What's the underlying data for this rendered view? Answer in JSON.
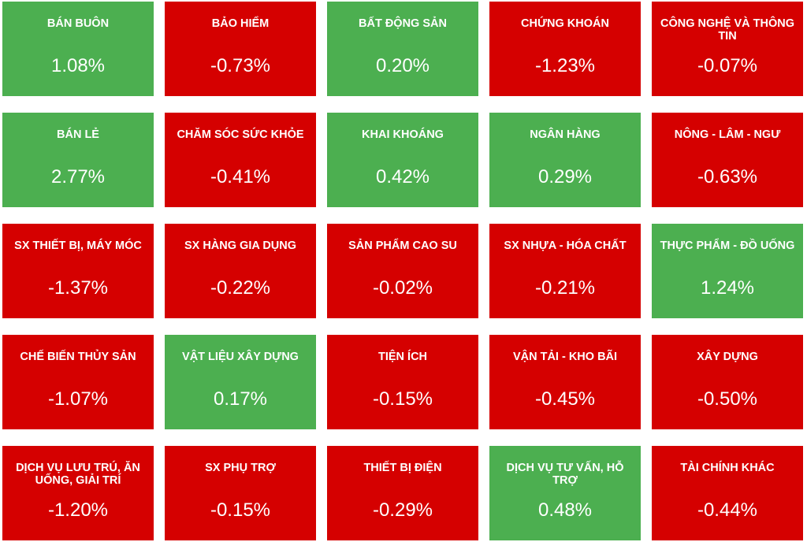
{
  "colors": {
    "up": "#4caf50",
    "down": "#d50000",
    "text": "#ffffff"
  },
  "tiles": [
    {
      "name": "BÁN BUÔN",
      "value": "1.08%",
      "trend": "up"
    },
    {
      "name": "BẢO HIỂM",
      "value": "-0.73%",
      "trend": "down"
    },
    {
      "name": "BẤT ĐỘNG SẢN",
      "value": "0.20%",
      "trend": "up"
    },
    {
      "name": "CHỨNG KHOÁN",
      "value": "-1.23%",
      "trend": "down"
    },
    {
      "name": "CÔNG NGHỆ VÀ THÔNG TIN",
      "value": "-0.07%",
      "trend": "down"
    },
    {
      "name": "BÁN LẺ",
      "value": "2.77%",
      "trend": "up"
    },
    {
      "name": "CHĂM SÓC SỨC KHỎE",
      "value": "-0.41%",
      "trend": "down"
    },
    {
      "name": "KHAI KHOÁNG",
      "value": "0.42%",
      "trend": "up"
    },
    {
      "name": "NGÂN HÀNG",
      "value": "0.29%",
      "trend": "up"
    },
    {
      "name": "NÔNG - LÂM - NGƯ",
      "value": "-0.63%",
      "trend": "down"
    },
    {
      "name": "SX THIẾT BỊ, MÁY MÓC",
      "value": "-1.37%",
      "trend": "down"
    },
    {
      "name": "SX HÀNG GIA DỤNG",
      "value": "-0.22%",
      "trend": "down"
    },
    {
      "name": "SẢN PHẨM CAO SU",
      "value": "-0.02%",
      "trend": "down"
    },
    {
      "name": "SX NHỰA - HÓA CHẤT",
      "value": "-0.21%",
      "trend": "down"
    },
    {
      "name": "THỰC PHẨM - ĐỒ UỐNG",
      "value": "1.24%",
      "trend": "up"
    },
    {
      "name": "CHẾ BIẾN THỦY SẢN",
      "value": "-1.07%",
      "trend": "down"
    },
    {
      "name": "VẬT LIỆU XÂY DỰNG",
      "value": "0.17%",
      "trend": "up"
    },
    {
      "name": "TIỆN ÍCH",
      "value": "-0.15%",
      "trend": "down"
    },
    {
      "name": "VẬN TẢI - KHO BÃI",
      "value": "-0.45%",
      "trend": "down"
    },
    {
      "name": "XÂY DỰNG",
      "value": "-0.50%",
      "trend": "down"
    },
    {
      "name": "DỊCH VỤ LƯU TRÚ, ĂN UỐNG, GIẢI TRÍ",
      "value": "-1.20%",
      "trend": "down"
    },
    {
      "name": "SX PHỤ TRỢ",
      "value": "-0.15%",
      "trend": "down"
    },
    {
      "name": "THIẾT BỊ ĐIỆN",
      "value": "-0.29%",
      "trend": "down"
    },
    {
      "name": "DỊCH VỤ TƯ VẤN, HỖ TRỢ",
      "value": "0.48%",
      "trend": "up"
    },
    {
      "name": "TÀI CHÍNH KHÁC",
      "value": "-0.44%",
      "trend": "down"
    }
  ]
}
